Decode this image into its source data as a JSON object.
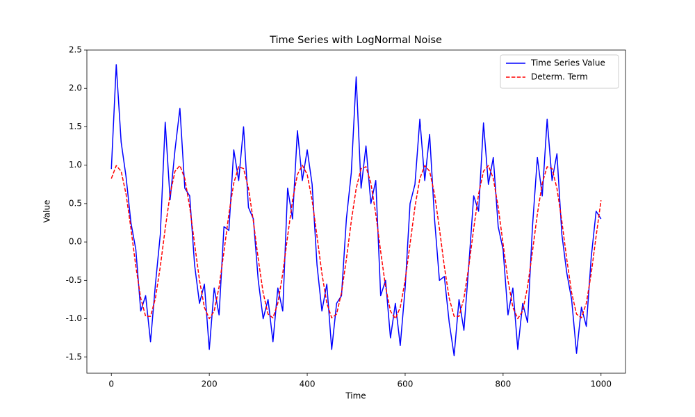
{
  "chart_data": {
    "type": "line",
    "title": "Time Series with LogNormal Noise",
    "x_label": "Time",
    "y_label": "Value",
    "x": [
      0,
      10,
      20,
      30,
      40,
      50,
      60,
      70,
      80,
      90,
      100,
      110,
      120,
      130,
      140,
      150,
      160,
      170,
      180,
      190,
      200,
      210,
      220,
      230,
      240,
      250,
      260,
      270,
      280,
      290,
      300,
      310,
      320,
      330,
      340,
      350,
      360,
      370,
      380,
      390,
      400,
      410,
      420,
      430,
      440,
      450,
      460,
      470,
      480,
      490,
      500,
      510,
      520,
      530,
      540,
      550,
      560,
      570,
      580,
      590,
      600,
      610,
      620,
      630,
      640,
      650,
      660,
      670,
      680,
      690,
      700,
      710,
      720,
      730,
      740,
      750,
      760,
      770,
      780,
      790,
      800,
      810,
      820,
      830,
      840,
      850,
      860,
      870,
      880,
      890,
      900,
      910,
      920,
      930,
      940,
      950,
      960,
      970,
      980,
      990,
      1000
    ],
    "series": [
      {
        "name": "Time Series Value",
        "color": "#0000ff",
        "linestyle": "solid",
        "values": [
          0.95,
          2.31,
          1.3,
          0.85,
          0.25,
          -0.1,
          -0.9,
          -0.7,
          -1.3,
          -0.55,
          0.1,
          1.56,
          0.55,
          1.2,
          1.74,
          0.7,
          0.6,
          -0.3,
          -0.8,
          -0.55,
          -1.4,
          -0.6,
          -0.95,
          0.2,
          0.15,
          1.2,
          0.8,
          1.5,
          0.45,
          0.3,
          -0.5,
          -1.0,
          -0.75,
          -1.3,
          -0.6,
          -0.9,
          0.7,
          0.3,
          1.45,
          0.8,
          1.2,
          0.75,
          -0.3,
          -0.9,
          -0.55,
          -1.4,
          -0.8,
          -0.7,
          0.3,
          0.9,
          2.15,
          0.7,
          1.25,
          0.5,
          0.8,
          -0.7,
          -0.5,
          -1.25,
          -0.8,
          -1.35,
          -0.6,
          0.5,
          0.75,
          1.6,
          0.8,
          1.4,
          0.3,
          -0.5,
          -0.45,
          -1.05,
          -1.48,
          -0.75,
          -1.15,
          -0.3,
          0.6,
          0.4,
          1.55,
          0.75,
          1.1,
          0.2,
          -0.1,
          -0.95,
          -0.6,
          -1.4,
          -0.8,
          -1.05,
          0.2,
          1.1,
          0.6,
          1.6,
          0.8,
          1.15,
          0.1,
          -0.4,
          -0.75,
          -1.45,
          -0.85,
          -1.1,
          -0.2,
          0.4,
          0.3
        ]
      },
      {
        "name": "Determ. Term",
        "color": "#ff0000",
        "linestyle": "dashed",
        "values": [
          0.826,
          0.995,
          0.921,
          0.624,
          0.174,
          -0.318,
          -0.733,
          -0.969,
          -0.969,
          -0.733,
          -0.318,
          0.174,
          0.624,
          0.921,
          0.995,
          0.826,
          0.456,
          -0.025,
          -0.5,
          -0.853,
          -0.999,
          -0.901,
          -0.584,
          -0.124,
          0.365,
          0.766,
          0.98,
          0.956,
          0.698,
          0.271,
          -0.223,
          -0.662,
          -0.94,
          -0.989,
          -0.797,
          -0.411,
          0.075,
          0.543,
          0.878,
          1.0,
          0.878,
          0.543,
          0.075,
          -0.411,
          -0.797,
          -0.989,
          -0.94,
          -0.662,
          -0.223,
          0.271,
          0.698,
          0.956,
          0.98,
          0.766,
          0.365,
          -0.124,
          -0.584,
          -0.901,
          -0.999,
          -0.853,
          -0.5,
          -0.025,
          0.456,
          0.826,
          0.995,
          0.921,
          0.624,
          0.174,
          -0.318,
          -0.733,
          -0.969,
          -0.969,
          -0.733,
          -0.318,
          0.174,
          0.624,
          0.921,
          0.995,
          0.826,
          0.456,
          -0.025,
          -0.5,
          -0.853,
          -0.999,
          -0.901,
          -0.584,
          -0.124,
          0.365,
          0.766,
          0.98,
          0.956,
          0.698,
          0.271,
          -0.223,
          -0.662,
          -0.94,
          -0.989,
          -0.797,
          -0.411,
          0.075,
          0.543
        ]
      }
    ],
    "xlim": [
      -50,
      1050
    ],
    "xticks": [
      0,
      200,
      400,
      600,
      800,
      1000
    ],
    "ylim": [
      -1.71,
      2.5
    ],
    "yticks": [
      {
        "value": -1.5,
        "label": "-1.5"
      },
      {
        "value": -1,
        "label": "-1.0"
      },
      {
        "value": -0.5,
        "label": "-0.5"
      },
      {
        "value": 0,
        "label": "0.0"
      },
      {
        "value": 0.5,
        "label": "0.5"
      },
      {
        "value": 1,
        "label": "1.0"
      },
      {
        "value": 1.5,
        "label": "1.5"
      },
      {
        "value": 2,
        "label": "2.0"
      },
      {
        "value": 2.5,
        "label": "2.5"
      }
    ],
    "grid": false,
    "legend": "upper right"
  }
}
